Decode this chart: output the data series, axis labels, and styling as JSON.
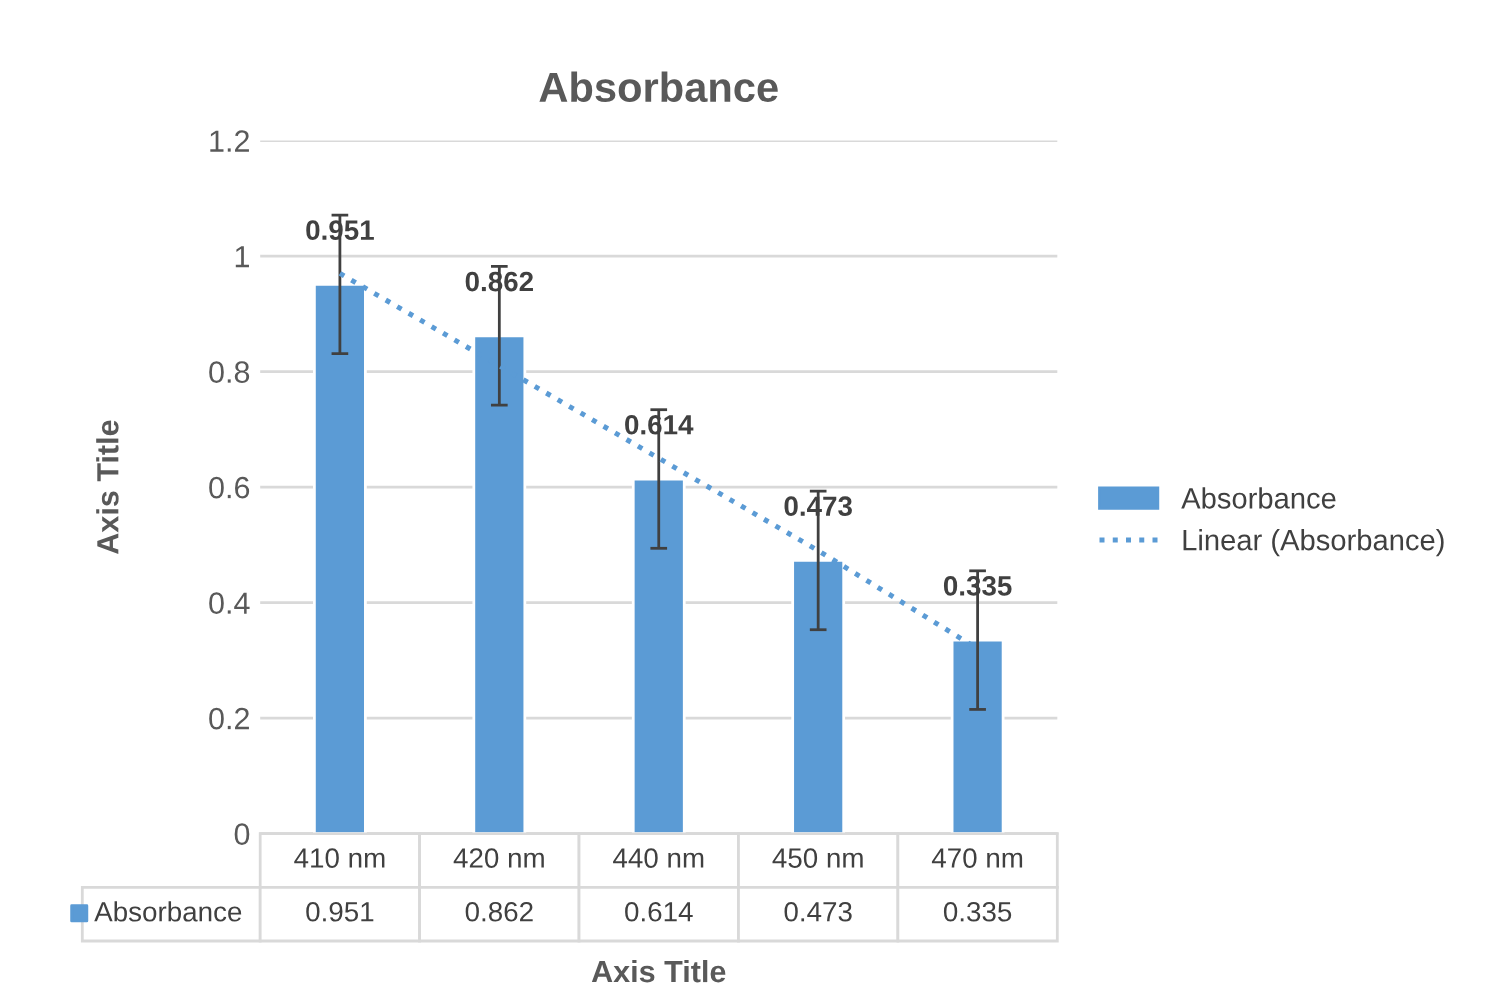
{
  "chart_data": {
    "type": "bar",
    "title": "Absorbance",
    "xlabel": "Axis Title",
    "ylabel": "Axis Title",
    "categories": [
      "410 nm",
      "420 nm",
      "440 nm",
      "450 nm",
      "470 nm"
    ],
    "series": [
      {
        "name": "Absorbance",
        "color": "#5b9bd5",
        "values": [
          0.951,
          0.862,
          0.614,
          0.473,
          0.335
        ],
        "errors": [
          0.12,
          0.12,
          0.12,
          0.12,
          0.12
        ],
        "value_labels": [
          "0.951",
          "0.862",
          "0.614",
          "0.473",
          "0.335"
        ]
      },
      {
        "name": "Linear (Absorbance)",
        "type": "line",
        "color": "#5b9bd5",
        "line_style": "dotted",
        "values": [
          0.97,
          0.81,
          0.65,
          0.49,
          0.32
        ]
      }
    ],
    "annotations": [
      "0.951",
      "0.862",
      "0.614",
      "0.473",
      "0.335"
    ],
    "ylim": [
      0,
      1.2
    ],
    "yticks": [
      0,
      0.2,
      0.4,
      0.6,
      0.8,
      1,
      1.2
    ],
    "grid": "y",
    "legend": "right"
  }
}
